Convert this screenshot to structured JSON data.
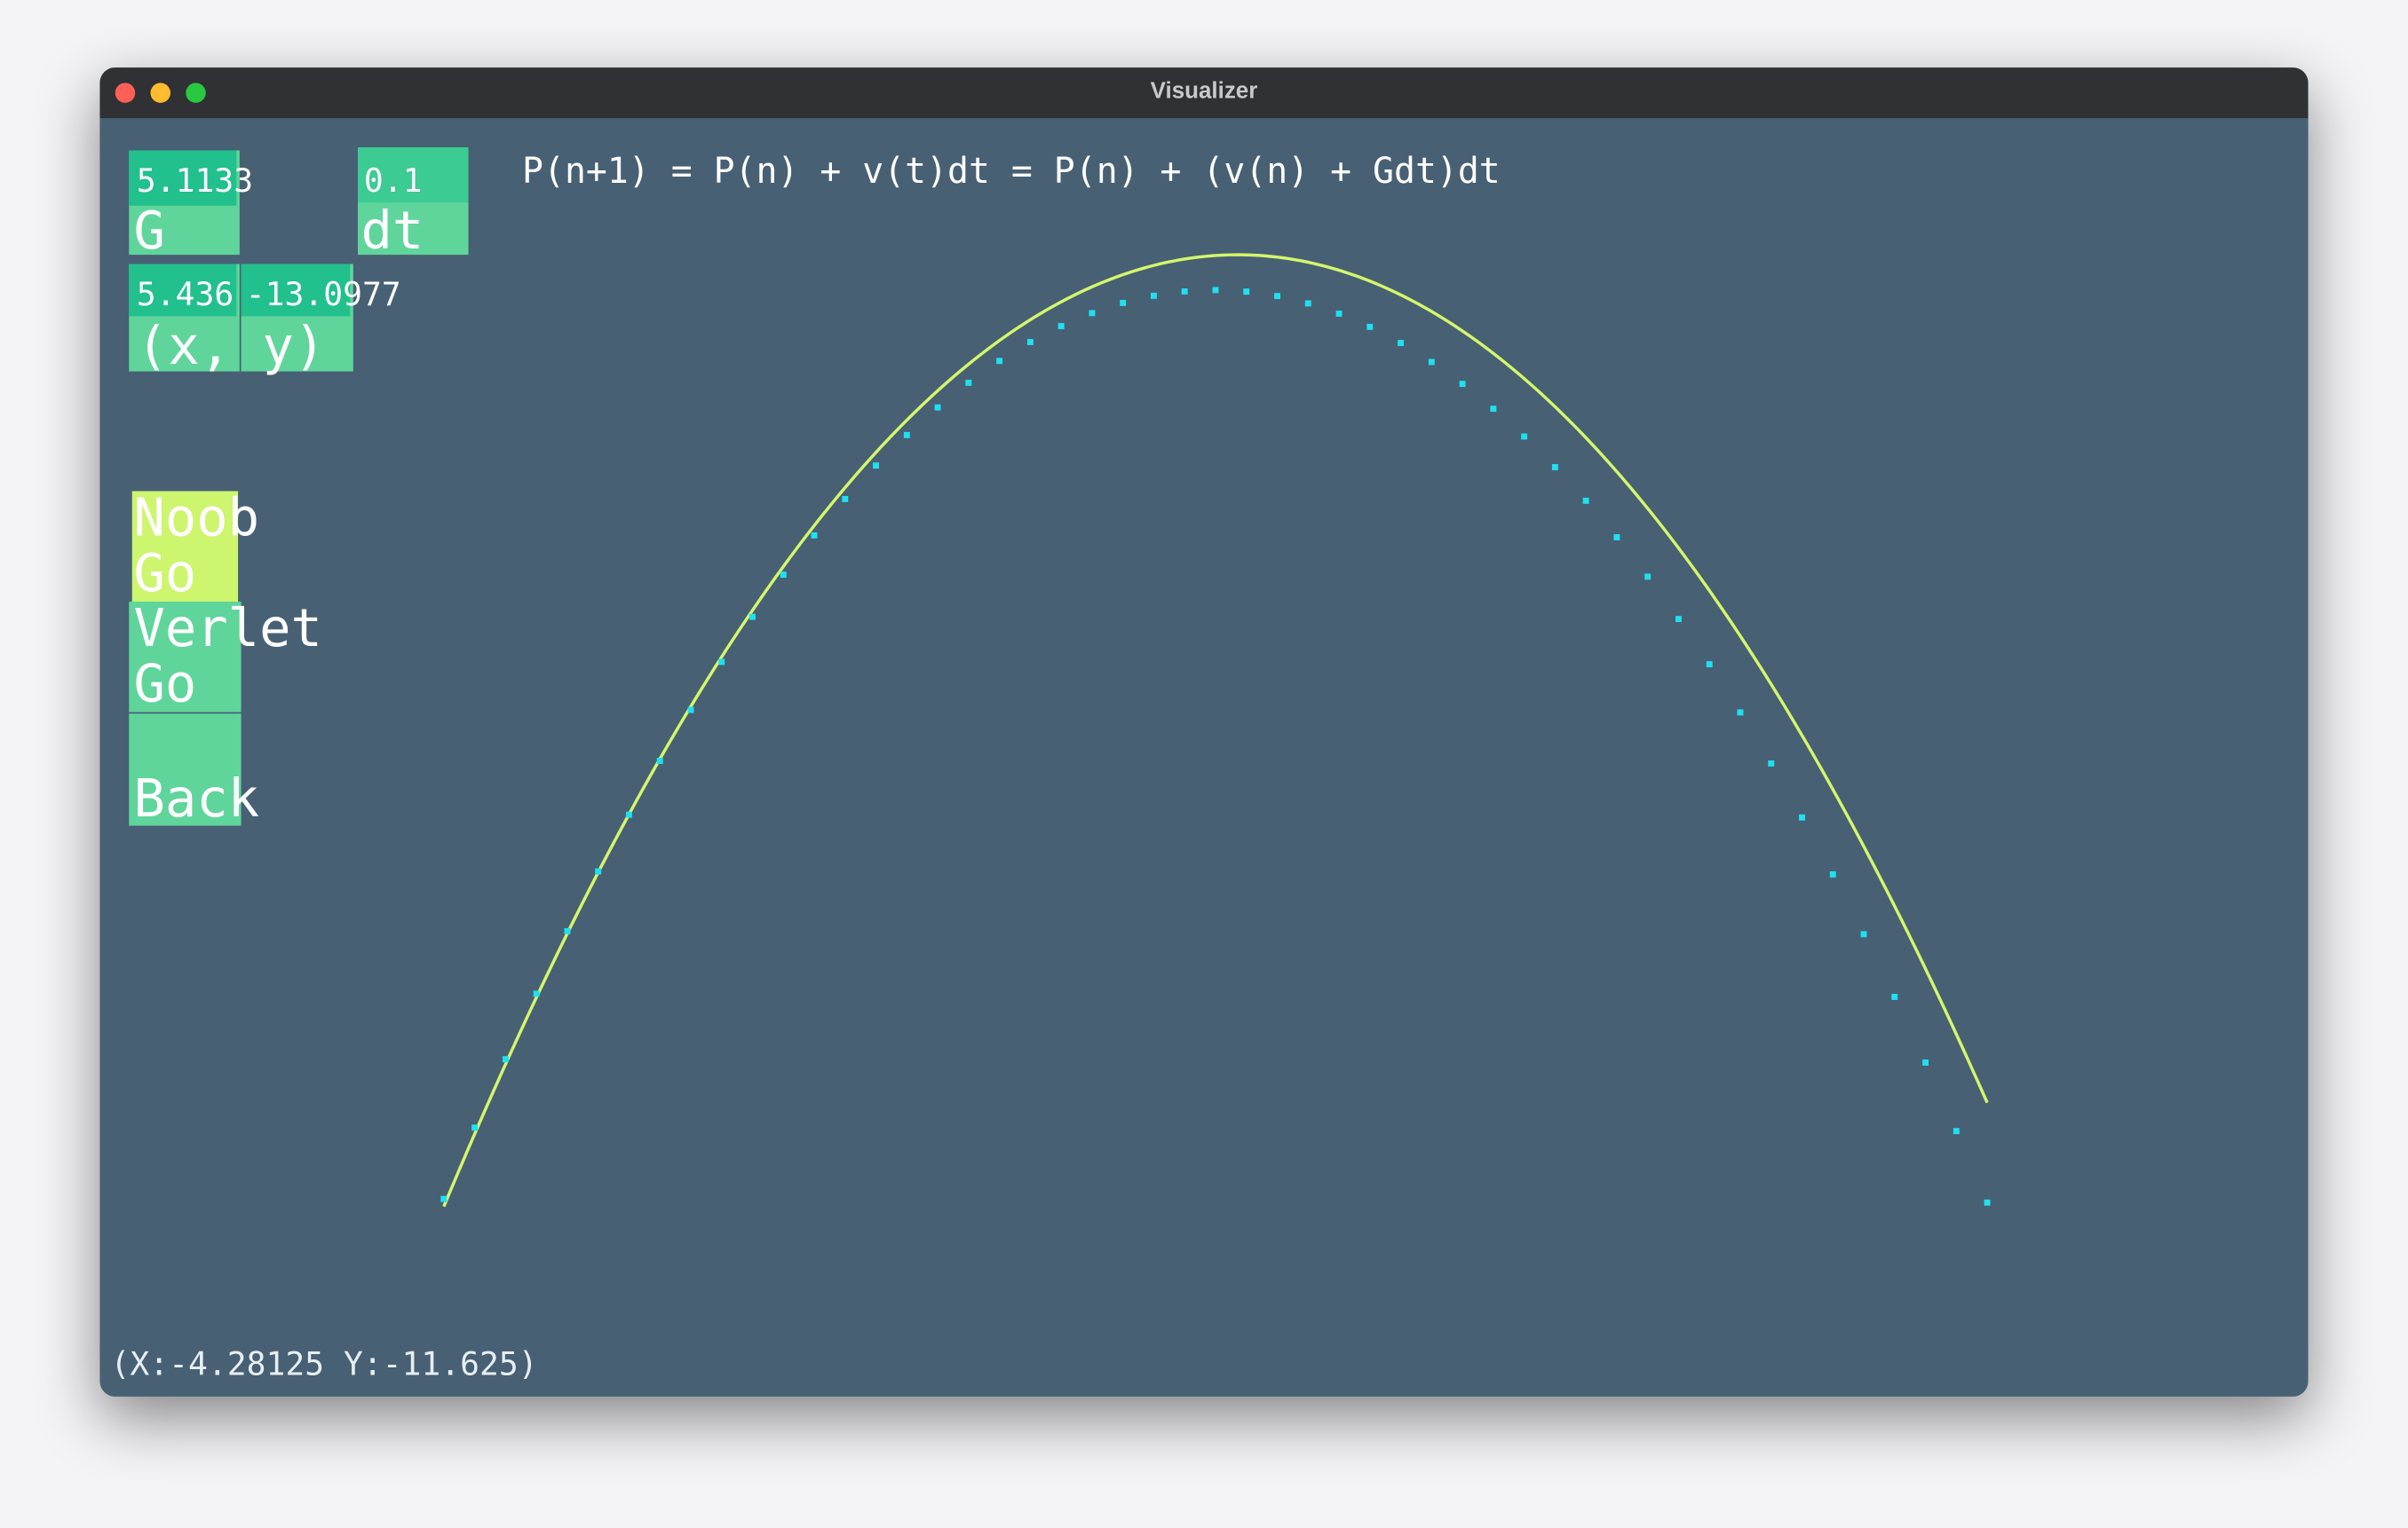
{
  "window": {
    "title": "Visualizer"
  },
  "formula": "P(n+1) = P(n) + v(t)dt = P(n) + (v(n) + Gdt)dt",
  "fields": [
    {
      "value": "5.1133",
      "label": "G"
    },
    {
      "value": "0.1",
      "label": "dt"
    }
  ],
  "position": {
    "x": "5.436",
    "y": "-13.0977",
    "label": "(x, y)"
  },
  "buttons": [
    {
      "lines": [
        "Noob",
        "Go"
      ]
    },
    {
      "lines": [
        "Verlet",
        "Go"
      ]
    },
    {
      "lines": [
        "",
        "Back"
      ]
    }
  ],
  "status": "(X:-4.28125 Y:-11.625)"
}
